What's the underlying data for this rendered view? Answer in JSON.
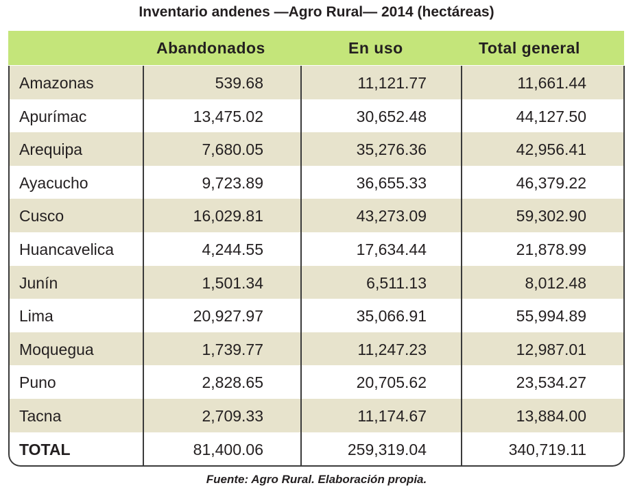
{
  "title": "Inventario andenes —Agro Rural— 2014 (hectáreas)",
  "headers": [
    "",
    "Abandonados",
    "En uso",
    "Total general"
  ],
  "rows": [
    [
      "Amazonas",
      "539.68",
      "11,121.77",
      "11,661.44"
    ],
    [
      "Apurímac",
      "13,475.02",
      "30,652.48",
      "44,127.50"
    ],
    [
      "Arequipa",
      "7,680.05",
      "35,276.36",
      "42,956.41"
    ],
    [
      "Ayacucho",
      "9,723.89",
      "36,655.33",
      "46,379.22"
    ],
    [
      "Cusco",
      "16,029.81",
      "43,273.09",
      "59,302.90"
    ],
    [
      "Huancavelica",
      "4,244.55",
      "17,634.44",
      "21,878.99"
    ],
    [
      "Junín",
      "1,501.34",
      "6,511.13",
      "8,012.48"
    ],
    [
      "Lima",
      "20,927.97",
      "35,066.91",
      "55,994.89"
    ],
    [
      "Moquegua",
      "1,739.77",
      "11,247.23",
      "12,987.01"
    ],
    [
      "Puno",
      "2,828.65",
      "20,705.62",
      "23,534.27"
    ],
    [
      "Tacna",
      "2,709.33",
      "11,174.67",
      "13,884.00"
    ],
    [
      "TOTAL",
      "81,400.06",
      "259,319.04",
      "340,719.11"
    ]
  ],
  "source": "Fuente: Agro Rural. Elaboración propia.",
  "colors": {
    "header": "#c4e57a",
    "stripe": "#e7e3cc"
  }
}
